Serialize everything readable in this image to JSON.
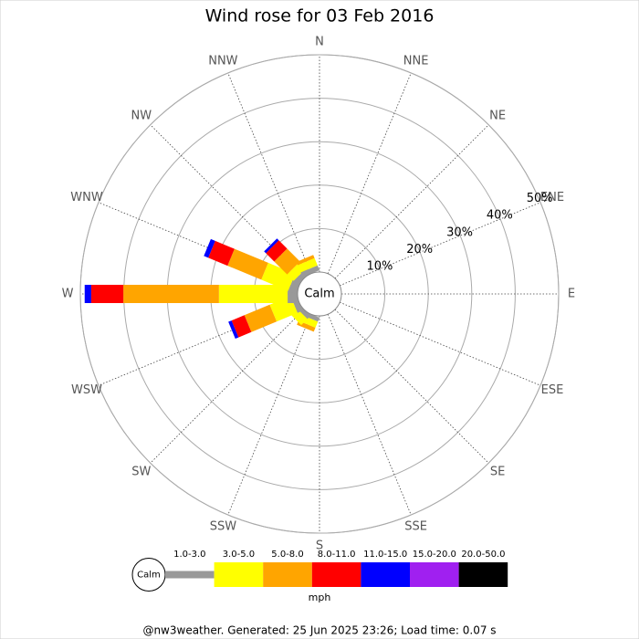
{
  "chart_data": {
    "type": "windrose",
    "title": "Wind rose for 03 Feb 2016",
    "categories": [
      "N",
      "NNE",
      "NE",
      "ENE",
      "E",
      "ESE",
      "SE",
      "SSE",
      "S",
      "SSW",
      "SW",
      "WSW",
      "W",
      "WNW",
      "NW",
      "NNW"
    ],
    "series": [
      {
        "name": "1.0-3.0",
        "color": "#999999",
        "values": [
          0,
          0,
          0,
          0,
          0,
          0,
          0,
          0,
          0,
          1,
          1,
          1.3,
          2.3,
          1.9,
          1.3,
          1.2
        ]
      },
      {
        "name": "3.0-5.0",
        "color": "#ffff00",
        "values": [
          0,
          0,
          0,
          0,
          0,
          0,
          0,
          0,
          0,
          1.5,
          2,
          5.2,
          15.8,
          6.7,
          2.1,
          1.8
        ]
      },
      {
        "name": "5.0-8.0",
        "color": "#ffa500",
        "values": [
          0,
          0,
          0,
          0,
          0,
          0,
          0,
          0,
          0,
          1,
          0,
          6.3,
          22,
          8.4,
          4.2,
          0.8
        ]
      },
      {
        "name": "8.0-11.0",
        "color": "#ff0000",
        "values": [
          0,
          0,
          0,
          0,
          0,
          0,
          0,
          0,
          0,
          0,
          0,
          3.2,
          7.4,
          4.8,
          2.7,
          0
        ]
      },
      {
        "name": "11.0-15.0",
        "color": "#0000ff",
        "values": [
          0,
          0,
          0,
          0,
          0,
          0,
          0,
          0,
          0,
          0,
          0,
          0.8,
          1.5,
          1.1,
          0.6,
          0
        ]
      },
      {
        "name": "15.0-20.0",
        "color": "#a020f0",
        "values": [
          0,
          0,
          0,
          0,
          0,
          0,
          0,
          0,
          0,
          0,
          0,
          0,
          0,
          0,
          0,
          0
        ]
      },
      {
        "name": "20.0-50.0",
        "color": "#000000",
        "values": [
          0,
          0,
          0,
          0,
          0,
          0,
          0,
          0,
          0,
          0,
          0,
          0,
          0,
          0,
          0,
          0
        ]
      }
    ],
    "rlim": [
      0,
      50
    ],
    "rticks": [
      {
        "value": 10,
        "label": "10%"
      },
      {
        "value": 20,
        "label": "20%"
      },
      {
        "value": 30,
        "label": "30%"
      },
      {
        "value": 40,
        "label": "40%"
      },
      {
        "value": 50,
        "label": "50%"
      }
    ],
    "calm_label": "Calm",
    "unit_label": "mph",
    "footer": "@nw3weather. Generated: 25 Jun 2025 23:26; Load time: 0.07 s"
  }
}
